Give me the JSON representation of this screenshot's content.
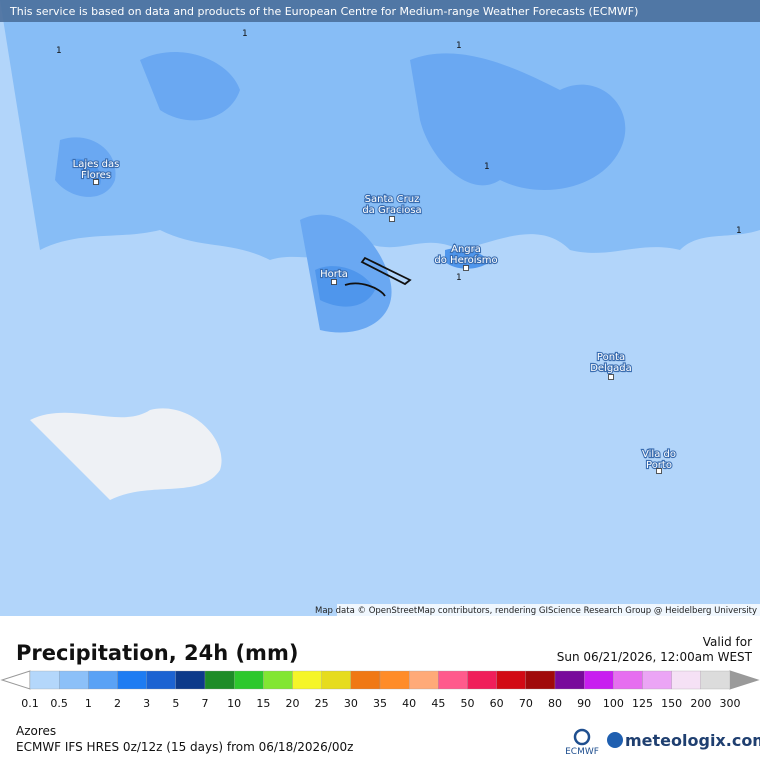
{
  "notice": "This service is based on data and products of the European Centre for Medium-range Weather Forecasts (ECMWF)",
  "places": [
    "Lajes das\nFlores",
    "Santa Cruz\nda Graciosa",
    "Horta",
    "Angra\ndo Heroísmo",
    "Ponta\nDelgada",
    "Vila do\nPorto"
  ],
  "contour_labels": [
    "1",
    "1",
    "1",
    "1",
    "1",
    "1"
  ],
  "attribution": "Map data © OpenStreetMap contributors, rendering GIScience Research Group @ Heidelberg University",
  "title": "Precipitation, 24h (mm)",
  "valid_label": "Valid for",
  "valid_time": "Sun 06/21/2026, 12:00am WEST",
  "legend": {
    "levels": [
      0.1,
      0.5,
      1,
      2,
      3,
      5,
      7,
      10,
      15,
      20,
      25,
      30,
      35,
      40,
      45,
      50,
      60,
      70,
      80,
      90,
      100,
      125,
      150,
      200,
      300
    ],
    "colors": [
      "#b4d7fb",
      "#8cc0f8",
      "#5aa2f5",
      "#1e7cf2",
      "#1c63d2",
      "#0d3a8a",
      "#1e8c28",
      "#2dc82d",
      "#82e632",
      "#f5f528",
      "#e6dc1e",
      "#f07814",
      "#ff8c28",
      "#ffaa78",
      "#ff5a8c",
      "#f01e5a",
      "#d20a14",
      "#a00a0a",
      "#780a9b",
      "#c81ef0",
      "#e66ef0",
      "#eba5f5",
      "#f5e1f5",
      "#dcdcdc"
    ]
  },
  "region": "Azores",
  "model": "ECMWF IFS HRES 0z/12z (15 days)  from  06/18/2026/00z",
  "ecmwf_logo": "ECMWF",
  "brand": "meteologix.com"
}
